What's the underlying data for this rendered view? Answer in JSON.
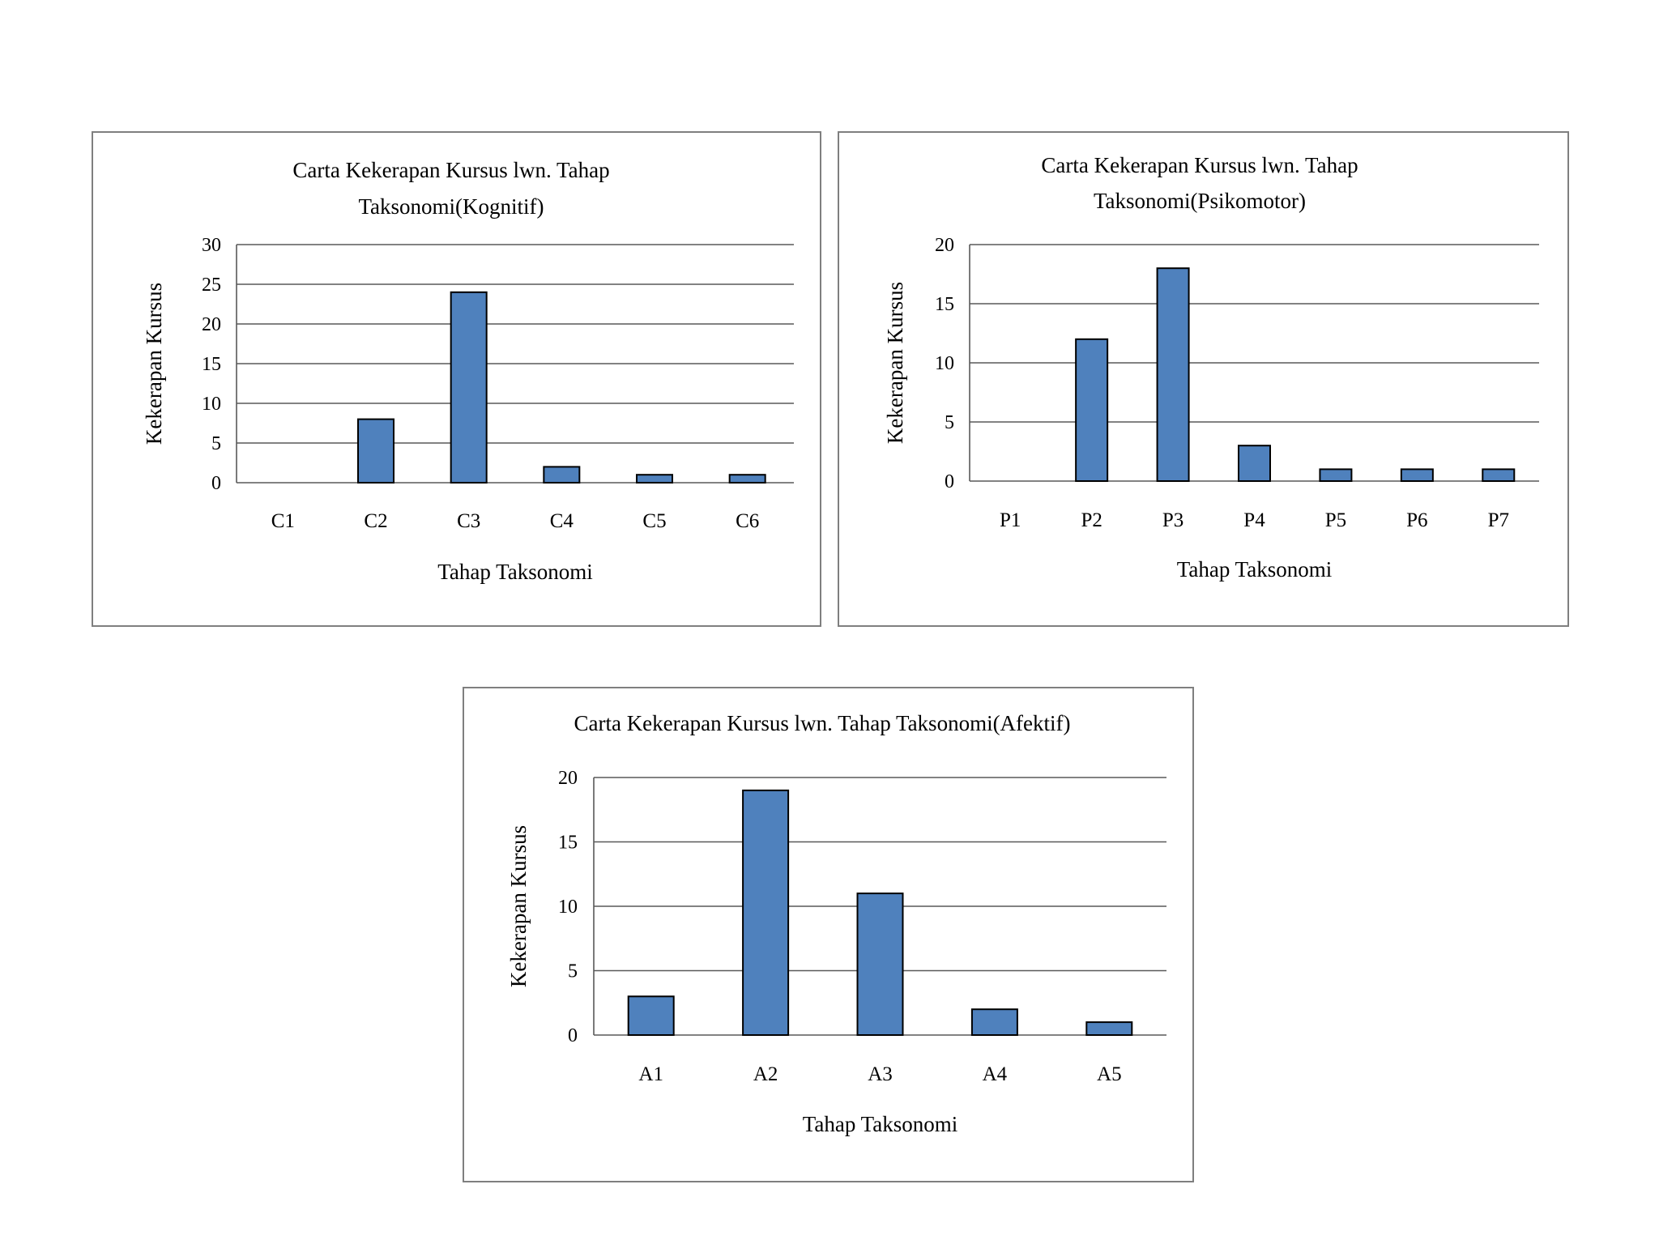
{
  "chart_data": [
    {
      "type": "bar",
      "title_lines": [
        "Carta Kekerapan Kursus lwn. Tahap",
        "Taksonomi(Kognitif)"
      ],
      "xlabel": "Tahap Taksonomi",
      "ylabel": "Kekerapan Kursus",
      "categories": [
        "C1",
        "C2",
        "C3",
        "C4",
        "C5",
        "C6"
      ],
      "values": [
        0,
        8,
        24,
        2,
        1,
        1
      ],
      "ylim": [
        0,
        30
      ],
      "yticks": [
        0,
        5,
        10,
        15,
        20,
        25,
        30
      ],
      "grid": true,
      "legend": "none"
    },
    {
      "type": "bar",
      "title_lines": [
        "Carta Kekerapan Kursus lwn. Tahap",
        "Taksonomi(Psikomotor)"
      ],
      "xlabel": "Tahap Taksonomi",
      "ylabel": "Kekerapan Kursus",
      "categories": [
        "P1",
        "P2",
        "P3",
        "P4",
        "P5",
        "P6",
        "P7"
      ],
      "values": [
        0,
        12,
        18,
        3,
        1,
        1,
        1
      ],
      "ylim": [
        0,
        20
      ],
      "yticks": [
        0,
        5,
        10,
        15,
        20
      ],
      "grid": true,
      "legend": "none"
    },
    {
      "type": "bar",
      "title_lines": [
        "Carta Kekerapan Kursus lwn. Tahap Taksonomi(Afektif)"
      ],
      "xlabel": "Tahap Taksonomi",
      "ylabel": "Kekerapan Kursus",
      "categories": [
        "A1",
        "A2",
        "A3",
        "A4",
        "A5"
      ],
      "values": [
        3,
        19,
        11,
        2,
        1
      ],
      "ylim": [
        0,
        20
      ],
      "yticks": [
        0,
        5,
        10,
        15,
        20
      ],
      "grid": true,
      "legend": "none"
    }
  ],
  "colors": {
    "bar_fill": "#4f81bd",
    "bar_stroke": "#000000",
    "gridline": "#595959",
    "frame": "#7f7f7f"
  }
}
